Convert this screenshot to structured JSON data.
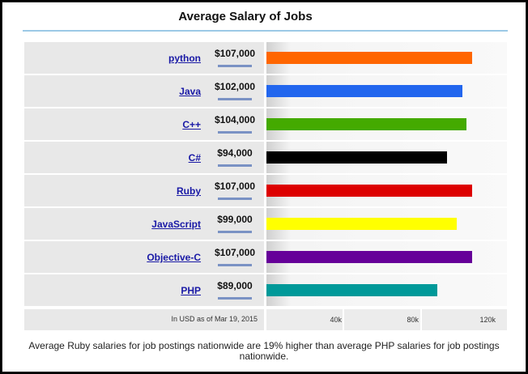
{
  "title": "Average Salary of Jobs",
  "chart_data": {
    "type": "bar",
    "orientation": "horizontal",
    "title": "Average Salary of Jobs",
    "categories": [
      "python",
      "Java",
      "C++",
      "C#",
      "Ruby",
      "JavaScript",
      "Objective-C",
      "PHP"
    ],
    "values": [
      107000,
      102000,
      104000,
      94000,
      107000,
      99000,
      107000,
      89000
    ],
    "value_labels": [
      "$107,000",
      "$102,000",
      "$104,000",
      "$94,000",
      "$107,000",
      "$99,000",
      "$107,000",
      "$89,000"
    ],
    "colors": [
      "#ff6600",
      "#2266ee",
      "#44aa00",
      "#000000",
      "#dd0000",
      "#ffff00",
      "#660099",
      "#009999"
    ],
    "xlim": [
      0,
      120000
    ],
    "x_ticks": [
      40000,
      80000,
      120000
    ],
    "x_tick_labels": [
      "40k",
      "80k",
      "120k"
    ],
    "axis_note": "In USD as of Mar 19, 2015"
  },
  "caption": "Average Ruby salaries for job postings nationwide are 19% higher than average PHP salaries for job postings nationwide."
}
